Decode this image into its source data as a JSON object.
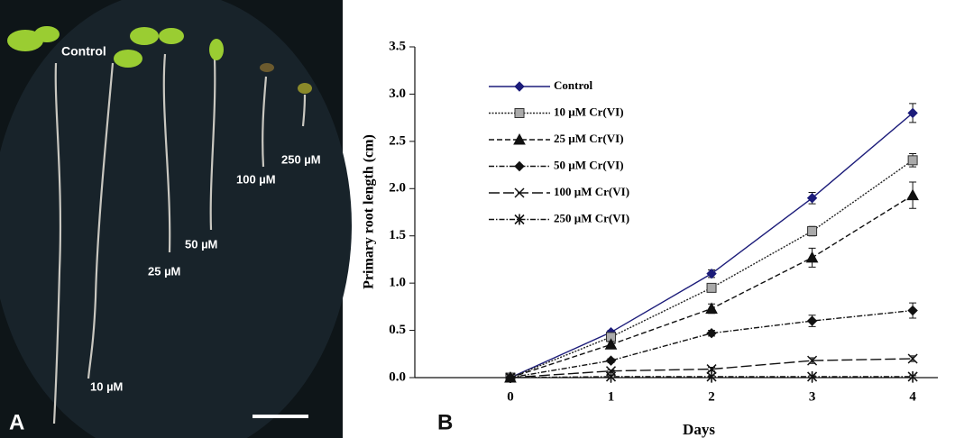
{
  "photo": {
    "panel_label": "A",
    "labels": [
      "Control",
      "10 µM",
      "25 µM",
      "50 µM",
      "100 µM",
      "250 µM"
    ]
  },
  "chart_data": {
    "type": "line",
    "panel_label": "B",
    "x_label": "Days",
    "y_label": "Primary root length (cm)",
    "x": [
      0,
      1,
      2,
      3,
      4
    ],
    "xlim": [
      -0.95,
      4.25
    ],
    "xticks": [
      0,
      1,
      2,
      3,
      4
    ],
    "ylim": [
      0,
      3.5
    ],
    "yticks": [
      {
        "value": 0,
        "label": "0.0"
      },
      0.5,
      {
        "value": 1,
        "label": "1.0"
      },
      1.5,
      {
        "value": 2,
        "label": "2.0"
      },
      2.5,
      {
        "value": 3,
        "label": "3.0"
      },
      3.5
    ],
    "series": [
      {
        "name": "Control",
        "color": "#1c1c7a",
        "marker": "diamond",
        "dash": "solid",
        "values": [
          0,
          0.48,
          1.1,
          1.9,
          2.8
        ],
        "errors": [
          0,
          0.02,
          0.04,
          0.06,
          0.1
        ]
      },
      {
        "name": "10 µM Cr(VI)",
        "color": "#222222",
        "marker": "square",
        "dash": "dotted",
        "values": [
          0,
          0.43,
          0.95,
          1.55,
          2.3
        ],
        "errors": [
          0,
          0.03,
          0.04,
          0.05,
          0.07
        ]
      },
      {
        "name": "25 µM Cr(VI)",
        "color": "#111111",
        "marker": "triangle",
        "dash": "dashed",
        "values": [
          0,
          0.35,
          0.73,
          1.27,
          1.93
        ],
        "errors": [
          0,
          0.03,
          0.05,
          0.1,
          0.14
        ]
      },
      {
        "name": "50 µM Cr(VI)",
        "color": "#111111",
        "marker": "diamond",
        "dash": "dashdot",
        "values": [
          0,
          0.18,
          0.47,
          0.6,
          0.71
        ],
        "errors": [
          0,
          0.02,
          0.03,
          0.06,
          0.08
        ]
      },
      {
        "name": "100 µM Cr(VI)",
        "color": "#111111",
        "marker": "x",
        "dash": "longdash",
        "values": [
          0,
          0.07,
          0.09,
          0.18,
          0.2
        ],
        "errors": [
          0,
          0.01,
          0.02,
          0.03,
          0.03
        ]
      },
      {
        "name": "250 µM Cr(VI)",
        "color": "#111111",
        "marker": "star",
        "dash": "dashdot",
        "values": [
          0,
          0.01,
          0.01,
          0.01,
          0.01
        ],
        "errors": [
          0,
          0.01,
          0.01,
          0.01,
          0.01
        ]
      }
    ]
  }
}
